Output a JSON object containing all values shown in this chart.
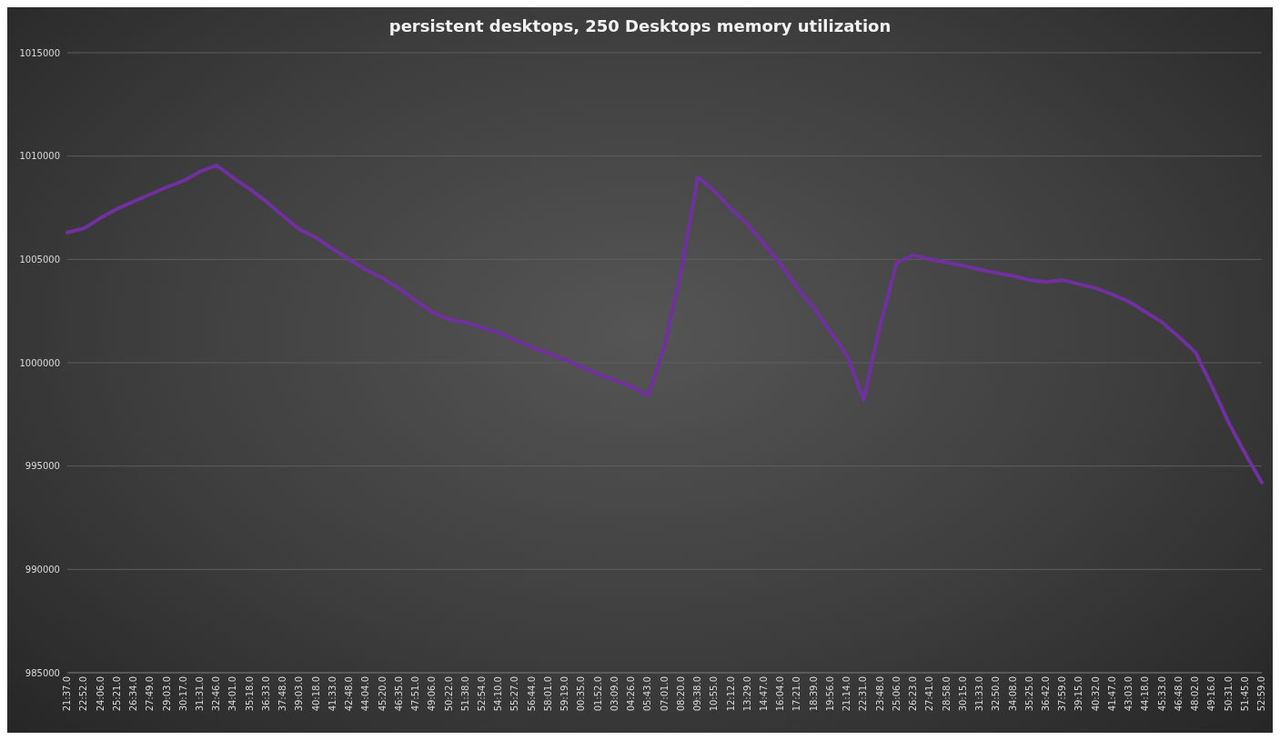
{
  "chart_data": {
    "type": "line",
    "title": "persistent desktops, 250 Desktops memory utilization",
    "categories": [
      "21:37.0",
      "22:52.0",
      "24:06.0",
      "25:21.0",
      "26:34.0",
      "27:49.0",
      "29:03.0",
      "30:17.0",
      "31:31.0",
      "32:46.0",
      "34:01.0",
      "35:18.0",
      "36:33.0",
      "37:48.0",
      "39:03.0",
      "40:18.0",
      "41:33.0",
      "42:48.0",
      "44:04.0",
      "45:20.0",
      "46:35.0",
      "47:51.0",
      "49:06.0",
      "50:22.0",
      "51:38.0",
      "52:54.0",
      "54:10.0",
      "55:27.0",
      "56:44.0",
      "58:01.0",
      "59:19.0",
      "00:35.0",
      "01:52.0",
      "03:09.0",
      "04:26.0",
      "05:43.0",
      "07:01.0",
      "08:20.0",
      "09:38.0",
      "10:55.0",
      "12:12.0",
      "13:29.0",
      "14:47.0",
      "16:04.0",
      "17:21.0",
      "18:39.0",
      "19:56.0",
      "21:14.0",
      "22:31.0",
      "23:48.0",
      "25:06.0",
      "26:23.0",
      "27:41.0",
      "28:58.0",
      "30:15.0",
      "31:33.0",
      "32:50.0",
      "34:08.0",
      "35:25.0",
      "36:42.0",
      "37:59.0",
      "39:15.0",
      "40:32.0",
      "41:47.0",
      "43:03.0",
      "44:18.0",
      "45:33.0",
      "46:48.0",
      "48:02.0",
      "49:16.0",
      "50:31.0",
      "51:45.0",
      "52:59.0"
    ],
    "series": [
      {
        "color": "#7030a0",
        "values": [
          1006300,
          1006500,
          1007000,
          1007450,
          1007800,
          1008150,
          1008500,
          1008800,
          1009250,
          1009550,
          1008950,
          1008400,
          1007800,
          1007100,
          1006450,
          1006050,
          1005500,
          1005000,
          1004500,
          1004100,
          1003600,
          1003000,
          1002450,
          1002100,
          1001950,
          1001700,
          1001450,
          1001100,
          1000750,
          1000450,
          1000150,
          999800,
          999450,
          999150,
          998850,
          998400,
          1000800,
          1004450,
          1009000,
          1008300,
          1007450,
          1006700,
          1005750,
          1004750,
          1003650,
          1002650,
          1001500,
          1000350,
          998200,
          1001850,
          1004850,
          1005200,
          1005000,
          1004850,
          1004700,
          1004500,
          1004350,
          1004200,
          1004000,
          1003900,
          1004000,
          1003800,
          1003600,
          1003300,
          1002950,
          1002450,
          1001950,
          1001250,
          1000500,
          998850,
          997100,
          995600,
          994200
        ]
      }
    ],
    "ylim": [
      985000,
      1015000
    ],
    "yticks": [
      985000,
      990000,
      995000,
      1000000,
      1005000,
      1010000,
      1015000
    ],
    "grid": "y",
    "legend": false,
    "marker": "none",
    "line_style": "solid"
  }
}
